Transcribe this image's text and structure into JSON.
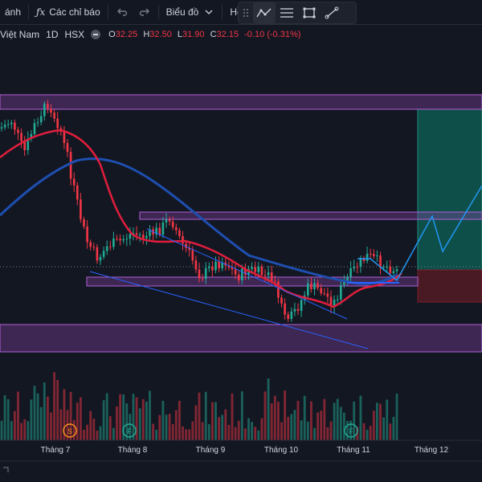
{
  "toolbar": {
    "partial_left_label": "ánh",
    "indicators_label": "Các chỉ báo",
    "chart_type_label": "Biểu đồ",
    "profile_label": "Hồ sơ"
  },
  "legend": {
    "symbol_partial": "Việt Nam",
    "interval": "1D",
    "exchange": "HSX",
    "o_label": "O",
    "o_value": "32.25",
    "h_label": "H",
    "h_value": "32.50",
    "l_label": "L",
    "l_value": "31.90",
    "c_label": "C",
    "c_value": "32.15",
    "change": "-0.10",
    "change_pct": "(-0.31%)"
  },
  "axis": {
    "months": [
      "Tháng 7",
      "Tháng 8",
      "Tháng 9",
      "Tháng 10",
      "Tháng 11",
      "Tháng 12"
    ]
  },
  "markers": [
    {
      "letter": "S",
      "color": "#f7931a"
    },
    {
      "letter": "F",
      "color": "#22ab94"
    },
    {
      "letter": "F",
      "color": "#22ab94"
    }
  ],
  "colors": {
    "up": "#22ab94",
    "down": "#f23645",
    "ma_fast": "#e01e3c",
    "ma_slow": "#1e4fb0",
    "zone": "#8e44ad",
    "projection": "#2196f3",
    "target_zone": "#0f6b5e",
    "stop_zone": "#7a1e2a"
  }
}
